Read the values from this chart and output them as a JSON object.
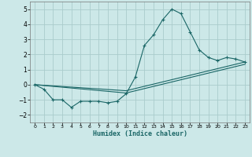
{
  "xlabel": "Humidex (Indice chaleur)",
  "background_color": "#cce8e8",
  "grid_color": "#aacccc",
  "line_color": "#1a6666",
  "xlim": [
    -0.5,
    23.5
  ],
  "ylim": [
    -2.5,
    5.5
  ],
  "yticks": [
    -2,
    -1,
    0,
    1,
    2,
    3,
    4,
    5
  ],
  "xticks": [
    0,
    1,
    2,
    3,
    4,
    5,
    6,
    7,
    8,
    9,
    10,
    11,
    12,
    13,
    14,
    15,
    16,
    17,
    18,
    19,
    20,
    21,
    22,
    23
  ],
  "line1_x": [
    0,
    1,
    2,
    3,
    4,
    5,
    6,
    7,
    8,
    9,
    10,
    11,
    12,
    13,
    14,
    15,
    16,
    17,
    18,
    19,
    20,
    21,
    22,
    23
  ],
  "line1_y": [
    0.0,
    -0.3,
    -1.0,
    -1.0,
    -1.5,
    -1.1,
    -1.1,
    -1.1,
    -1.2,
    -1.1,
    -0.6,
    0.5,
    2.6,
    3.3,
    4.3,
    5.0,
    4.7,
    3.5,
    2.3,
    1.8,
    1.6,
    1.8,
    1.7,
    1.5
  ],
  "line2_x": [
    0,
    10,
    23
  ],
  "line2_y": [
    0.0,
    -0.4,
    1.5
  ],
  "line3_x": [
    0,
    10,
    23
  ],
  "line3_y": [
    0.0,
    -0.55,
    1.35
  ]
}
